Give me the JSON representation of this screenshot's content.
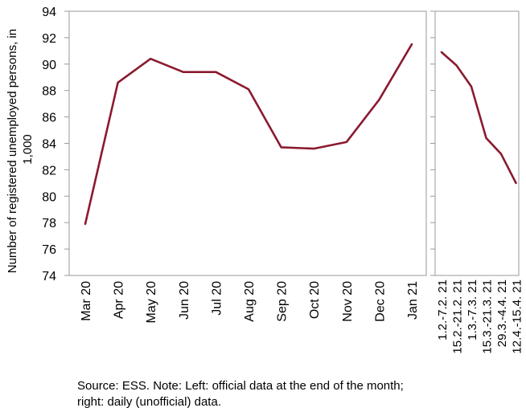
{
  "chart_data": {
    "type": "line",
    "ylabel": "Number of registered unemployed persons, in 1,000",
    "ylim": [
      74,
      94
    ],
    "yticks": [
      74,
      76,
      78,
      80,
      82,
      84,
      86,
      88,
      90,
      92,
      94
    ],
    "grid": false,
    "panels": [
      {
        "name": "monthly",
        "categories": [
          "Mar 20",
          "Apr 20",
          "May 20",
          "Jun 20",
          "Jul 20",
          "Aug 20",
          "Sep 20",
          "Oct 20",
          "Nov 20",
          "Dec 20",
          "Jan 21"
        ],
        "values": [
          77.9,
          88.6,
          90.4,
          89.4,
          89.4,
          88.1,
          83.7,
          83.6,
          84.1,
          87.3,
          91.5
        ]
      },
      {
        "name": "daily",
        "categories": [
          "1.2.-7.2. 21",
          "15.2.-21.2. 21",
          "1.3.-7.3. 21",
          "15.3.-21.3. 21",
          "29.3.-4.4. 21",
          "12.4.-15.4. 21"
        ],
        "values": [
          90.9,
          89.9,
          88.3,
          84.4,
          83.2,
          81.0
        ]
      }
    ],
    "line_color": "#8b1a2f"
  },
  "note": "Source: ESS. Note: Left: official data at the end of the month; right: daily (unofficial) data."
}
